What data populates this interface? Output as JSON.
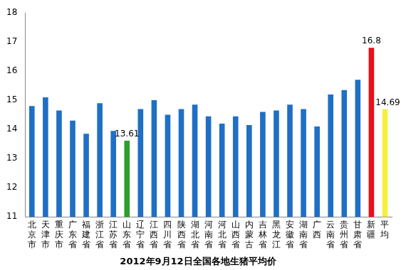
{
  "chart_data": {
    "type": "bar",
    "title": "2012年9月12日全国各地生猪平均价",
    "categories": [
      "北京市",
      "天津市",
      "重庆市",
      "广东省",
      "福建省",
      "浙江省",
      "江苏省",
      "山东省",
      "辽宁省",
      "江西省",
      "四川省",
      "陕西省",
      "湖北省",
      "河南省",
      "河北省",
      "山西省",
      "内蒙古",
      "吉林省",
      "黑龙江",
      "安徽省",
      "湖南省",
      "广西",
      "云南省",
      "贵州省",
      "甘肃省",
      "新疆",
      "平均"
    ],
    "values": [
      14.8,
      15.1,
      14.65,
      14.3,
      13.85,
      14.9,
      13.95,
      13.61,
      14.7,
      15.0,
      14.5,
      14.7,
      14.85,
      14.45,
      14.2,
      14.45,
      14.15,
      14.6,
      14.65,
      14.85,
      14.7,
      14.1,
      15.2,
      15.35,
      15.7,
      16.8,
      14.69
    ],
    "value_labels": [
      null,
      null,
      null,
      null,
      null,
      null,
      null,
      "13.61",
      null,
      null,
      null,
      null,
      null,
      null,
      null,
      null,
      null,
      null,
      null,
      null,
      null,
      null,
      null,
      null,
      null,
      "16.8",
      "14.69"
    ],
    "data_labels": true,
    "colors": [
      "#1f6fc5",
      "#1f6fc5",
      "#1f6fc5",
      "#1f6fc5",
      "#1f6fc5",
      "#1f6fc5",
      "#1f6fc5",
      "#2ca02c",
      "#1f6fc5",
      "#1f6fc5",
      "#1f6fc5",
      "#1f6fc5",
      "#1f6fc5",
      "#1f6fc5",
      "#1f6fc5",
      "#1f6fc5",
      "#1f6fc5",
      "#1f6fc5",
      "#1f6fc5",
      "#1f6fc5",
      "#1f6fc5",
      "#1f6fc5",
      "#1f6fc5",
      "#1f6fc5",
      "#1f6fc5",
      "#e8101a",
      "#f5f03c"
    ],
    "ylim": [
      11,
      18
    ],
    "yticks": [
      11,
      12,
      13,
      14,
      15,
      16,
      17,
      18
    ],
    "grid": false
  }
}
